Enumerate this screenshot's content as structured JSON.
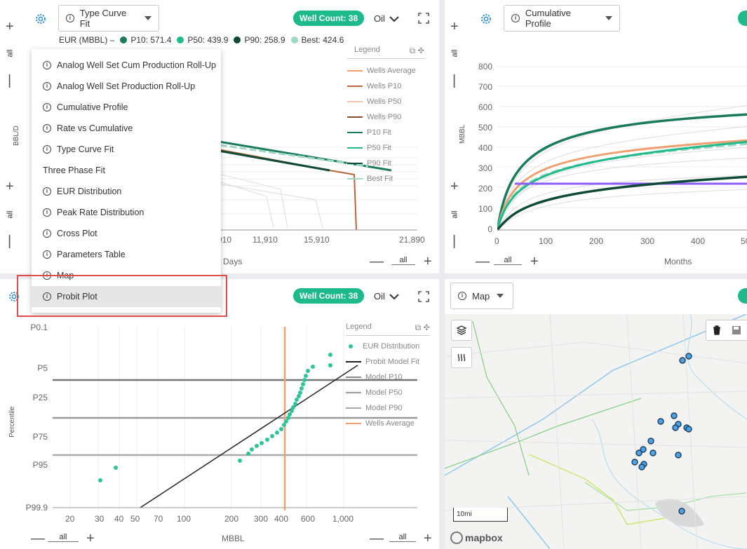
{
  "panel1": {
    "dropdown_label": "Type Curve Fit",
    "well_count": "Well Count: 38",
    "fluid": "Oil",
    "eur_header": "EUR (MBBL) –",
    "eur": [
      {
        "label": "P10: 571.4",
        "color": "#1a7a5e"
      },
      {
        "label": "P50: 439.9",
        "color": "#1fba8c"
      },
      {
        "label": "P90: 258.9",
        "color": "#0e4a38"
      },
      {
        "label": "Best: 424.6",
        "color": "#9fd9c2"
      }
    ],
    "y_label": "BBL/D",
    "x_label": "Days",
    "x_ticks": [
      "910",
      "11,910",
      "15,910",
      "21,890"
    ],
    "all": "all",
    "legend_title": "Legend",
    "legend": [
      {
        "label": "Wells Average",
        "color": "#f0a070"
      },
      {
        "label": "Wells P10",
        "color": "#b8643c"
      },
      {
        "label": "Wells P50",
        "color": "#f2c4a6"
      },
      {
        "label": "Wells P90",
        "color": "#8a4a2a"
      },
      {
        "label": "P10 Fit",
        "color": "#1a7a5e"
      },
      {
        "label": "P50 Fit",
        "color": "#1fba8c"
      },
      {
        "label": "P90 Fit",
        "color": "#0e4a38"
      },
      {
        "label": "Best Fit",
        "color": "#9fd9c2"
      }
    ]
  },
  "panel2": {
    "dropdown_label": "Cumulative Profile",
    "y_label": "MBBL",
    "x_label": "Months",
    "y_ticks": [
      "800",
      "700",
      "600",
      "500",
      "400",
      "300",
      "200",
      "100",
      "0"
    ],
    "x_ticks": [
      "0",
      "100",
      "200",
      "300",
      "400",
      "50"
    ],
    "all": "all"
  },
  "panel3": {
    "well_count": "Well Count: 38",
    "fluid": "Oil",
    "y_label": "Percentile",
    "x_label": "MBBL",
    "y_ticks": [
      "P0.1",
      "P5",
      "P25",
      "P75",
      "P95",
      "P99.9"
    ],
    "x_ticks": [
      "20",
      "30",
      "40",
      "50",
      "70",
      "100",
      "200",
      "300",
      "400",
      "600",
      "1,000"
    ],
    "all": "all",
    "legend_title": "Legend",
    "legend": [
      {
        "label": "EUR Distribution",
        "color": "#2ec49a"
      },
      {
        "label": "Probit Model Fit",
        "color": "#222222"
      },
      {
        "label": "Model P10",
        "color": "#888888"
      },
      {
        "label": "Model P50",
        "color": "#999999"
      },
      {
        "label": "Model P90",
        "color": "#aaaaaa"
      },
      {
        "label": "Wells Average",
        "color": "#f0a070"
      }
    ]
  },
  "panel4": {
    "dropdown_label": "Map",
    "scale": "10mi",
    "attribution": "mapbox"
  },
  "menu": {
    "items": [
      {
        "label": "Analog Well Set Cum Production Roll-Up",
        "info": true
      },
      {
        "label": "Analog Well Set Production Roll-Up",
        "info": true
      },
      {
        "label": "Cumulative Profile",
        "info": true
      },
      {
        "label": "Rate vs Cumulative",
        "info": true
      },
      {
        "label": "Type Curve Fit",
        "info": true
      },
      {
        "label": "Three Phase Fit",
        "info": false
      },
      {
        "label": "EUR Distribution",
        "info": true
      },
      {
        "label": "Peak Rate Distribution",
        "info": true
      },
      {
        "label": "Cross Plot",
        "info": true
      },
      {
        "label": "Parameters Table",
        "info": true
      },
      {
        "label": "Map",
        "info": true
      },
      {
        "label": "Probit Plot",
        "info": true,
        "selected": true
      }
    ]
  }
}
